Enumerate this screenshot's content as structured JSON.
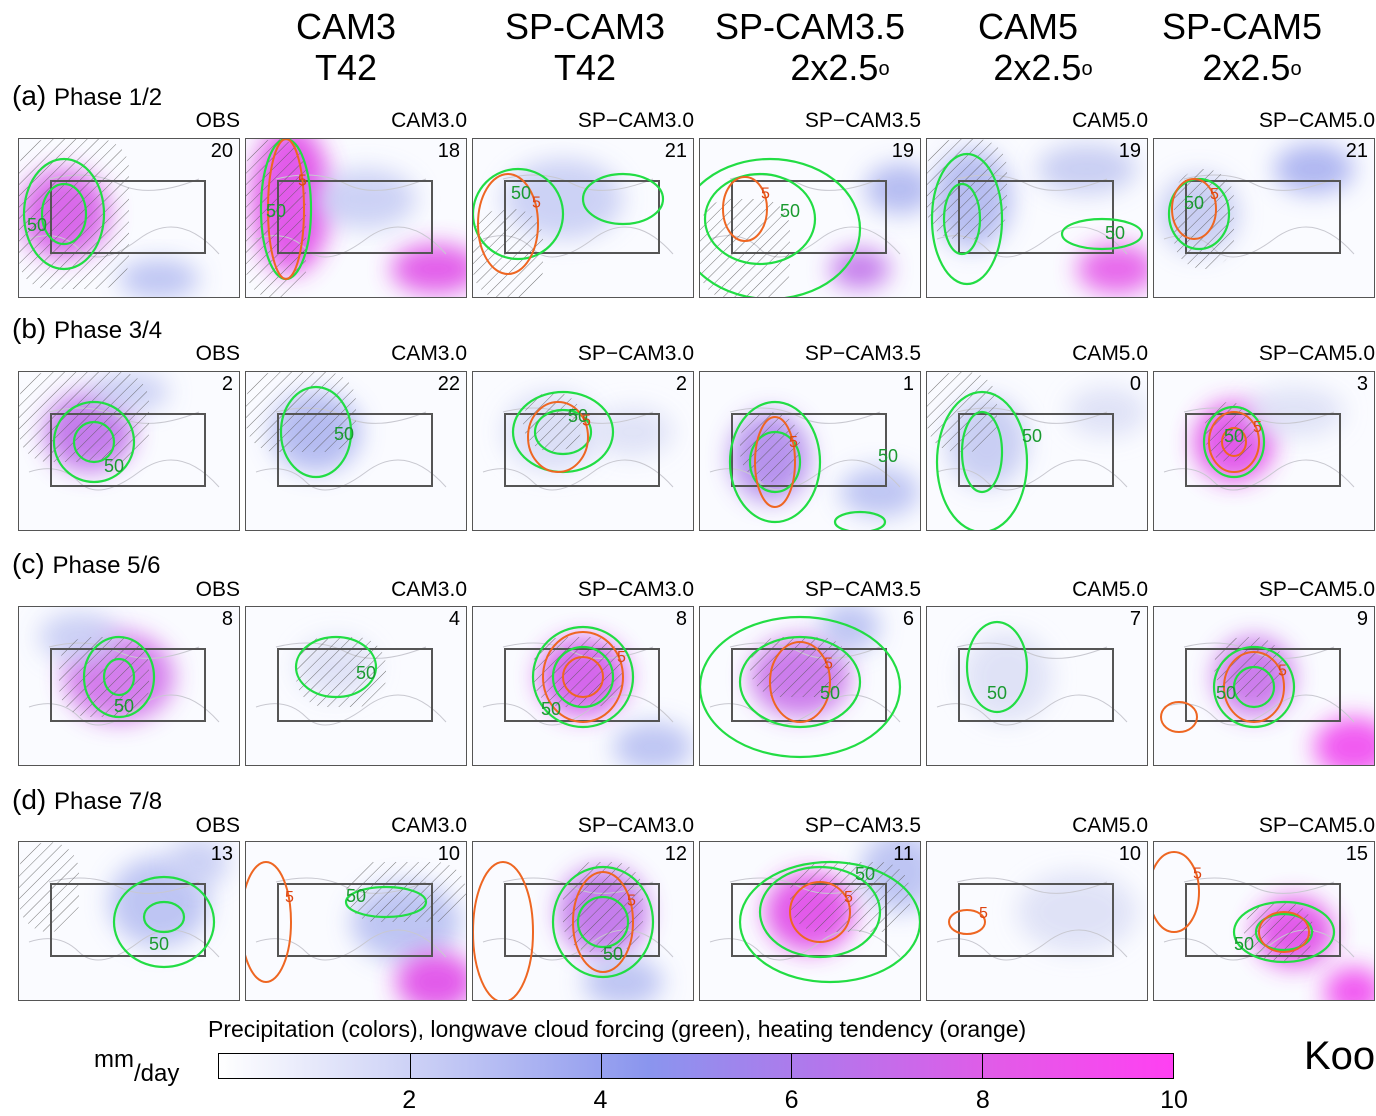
{
  "columns": [
    {
      "line1": "CAM3",
      "line2": "T42"
    },
    {
      "line1": "SP-CAM3",
      "line2": "T42"
    },
    {
      "line1": "SP-CAM3.5",
      "line2": "2x2.5",
      "sup": "o"
    },
    {
      "line1": "CAM5",
      "line2": "2x2.5",
      "sup": "o"
    },
    {
      "line1": "SP-CAM5",
      "line2": "2x2.5",
      "sup": "o"
    }
  ],
  "rows": [
    {
      "letter": "(a)",
      "label": "Phase 1/2",
      "panels": [
        {
          "name": "OBS",
          "count": "20"
        },
        {
          "name": "CAM3.0",
          "count": "18"
        },
        {
          "name": "SP−CAM3.0",
          "count": "21"
        },
        {
          "name": "SP−CAM3.5",
          "count": "19"
        },
        {
          "name": "CAM5.0",
          "count": "19"
        },
        {
          "name": "SP−CAM5.0",
          "count": "21"
        }
      ]
    },
    {
      "letter": "(b)",
      "label": "Phase 3/4",
      "panels": [
        {
          "name": "OBS",
          "count": "2"
        },
        {
          "name": "CAM3.0",
          "count": "22"
        },
        {
          "name": "SP−CAM3.0",
          "count": "2"
        },
        {
          "name": "SP−CAM3.5",
          "count": "1"
        },
        {
          "name": "CAM5.0",
          "count": "0"
        },
        {
          "name": "SP−CAM5.0",
          "count": "3"
        }
      ]
    },
    {
      "letter": "(c)",
      "label": "Phase 5/6",
      "panels": [
        {
          "name": "OBS",
          "count": "8"
        },
        {
          "name": "CAM3.0",
          "count": "4"
        },
        {
          "name": "SP−CAM3.0",
          "count": "8"
        },
        {
          "name": "SP−CAM3.5",
          "count": "6"
        },
        {
          "name": "CAM5.0",
          "count": "7"
        },
        {
          "name": "SP−CAM5.0",
          "count": "9"
        }
      ]
    },
    {
      "letter": "(d)",
      "label": "Phase 7/8",
      "panels": [
        {
          "name": "OBS",
          "count": "13"
        },
        {
          "name": "CAM3.0",
          "count": "10"
        },
        {
          "name": "SP−CAM3.0",
          "count": "12"
        },
        {
          "name": "SP−CAM3.5",
          "count": "11"
        },
        {
          "name": "CAM5.0",
          "count": "10"
        },
        {
          "name": "SP−CAM5.0",
          "count": "15"
        }
      ]
    }
  ],
  "contour_labels": {
    "green": "50",
    "orange": "5"
  },
  "colorbar": {
    "title": "Precipitation (colors), longwave cloud forcing (green), heating tendency (orange)",
    "unit_num": "mm",
    "unit_den": "/day",
    "min": 0,
    "max": 10,
    "ticks": [
      "2",
      "4",
      "6",
      "8",
      "10"
    ]
  },
  "citation": "Koo",
  "colors": {
    "green_contour": "#22dd44",
    "orange_contour": "#ee6622",
    "box": "#555555"
  }
}
